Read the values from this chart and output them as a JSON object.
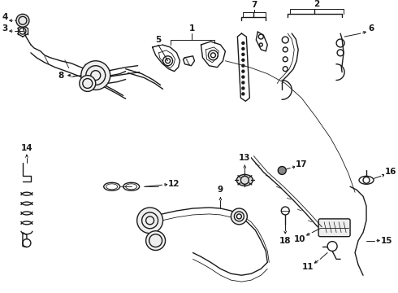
{
  "bg_color": "#ffffff",
  "line_color": "#1a1a1a",
  "label_color": "#000000",
  "fig_w": 4.9,
  "fig_h": 3.6,
  "dpi": 100
}
